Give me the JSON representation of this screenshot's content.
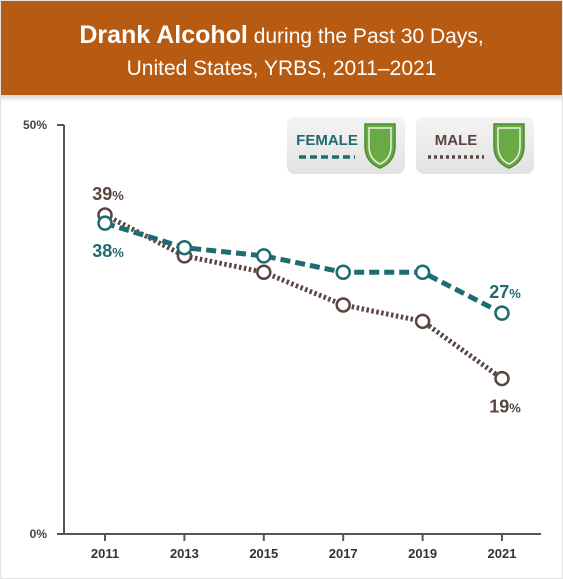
{
  "header": {
    "title_strong": "Drank Alcohol",
    "title_rest": " during the Past 30 Days,",
    "subtitle": "United States, YRBS, 2011–2021",
    "bg_color": "#b75a12"
  },
  "legend": {
    "female_label": "FEMALE",
    "male_label": "MALE",
    "icon": "shield-check-icon",
    "icon_color": "#6aaa45"
  },
  "colors": {
    "female": "#1f6b72",
    "male": "#5a4640"
  },
  "chart_data": {
    "type": "line",
    "x": [
      "2011",
      "2013",
      "2015",
      "2017",
      "2019",
      "2021"
    ],
    "ylim": [
      0,
      50
    ],
    "y_ticks": [
      "0%",
      "50%"
    ],
    "legend_position": "top-right",
    "grid": false,
    "series": [
      {
        "name": "FEMALE",
        "values": [
          38,
          35,
          34,
          32,
          32,
          27
        ],
        "style": "dashed"
      },
      {
        "name": "MALE",
        "values": [
          39,
          34,
          32,
          28,
          26,
          19
        ],
        "style": "dotted"
      }
    ],
    "data_labels": [
      {
        "series": "MALE",
        "x": "2011",
        "value": "39",
        "unit": "%",
        "where": "above"
      },
      {
        "series": "FEMALE",
        "x": "2011",
        "value": "38",
        "unit": "%",
        "where": "below"
      },
      {
        "series": "FEMALE",
        "x": "2021",
        "value": "27",
        "unit": "%",
        "where": "above"
      },
      {
        "series": "MALE",
        "x": "2021",
        "value": "19",
        "unit": "%",
        "where": "below"
      }
    ]
  }
}
